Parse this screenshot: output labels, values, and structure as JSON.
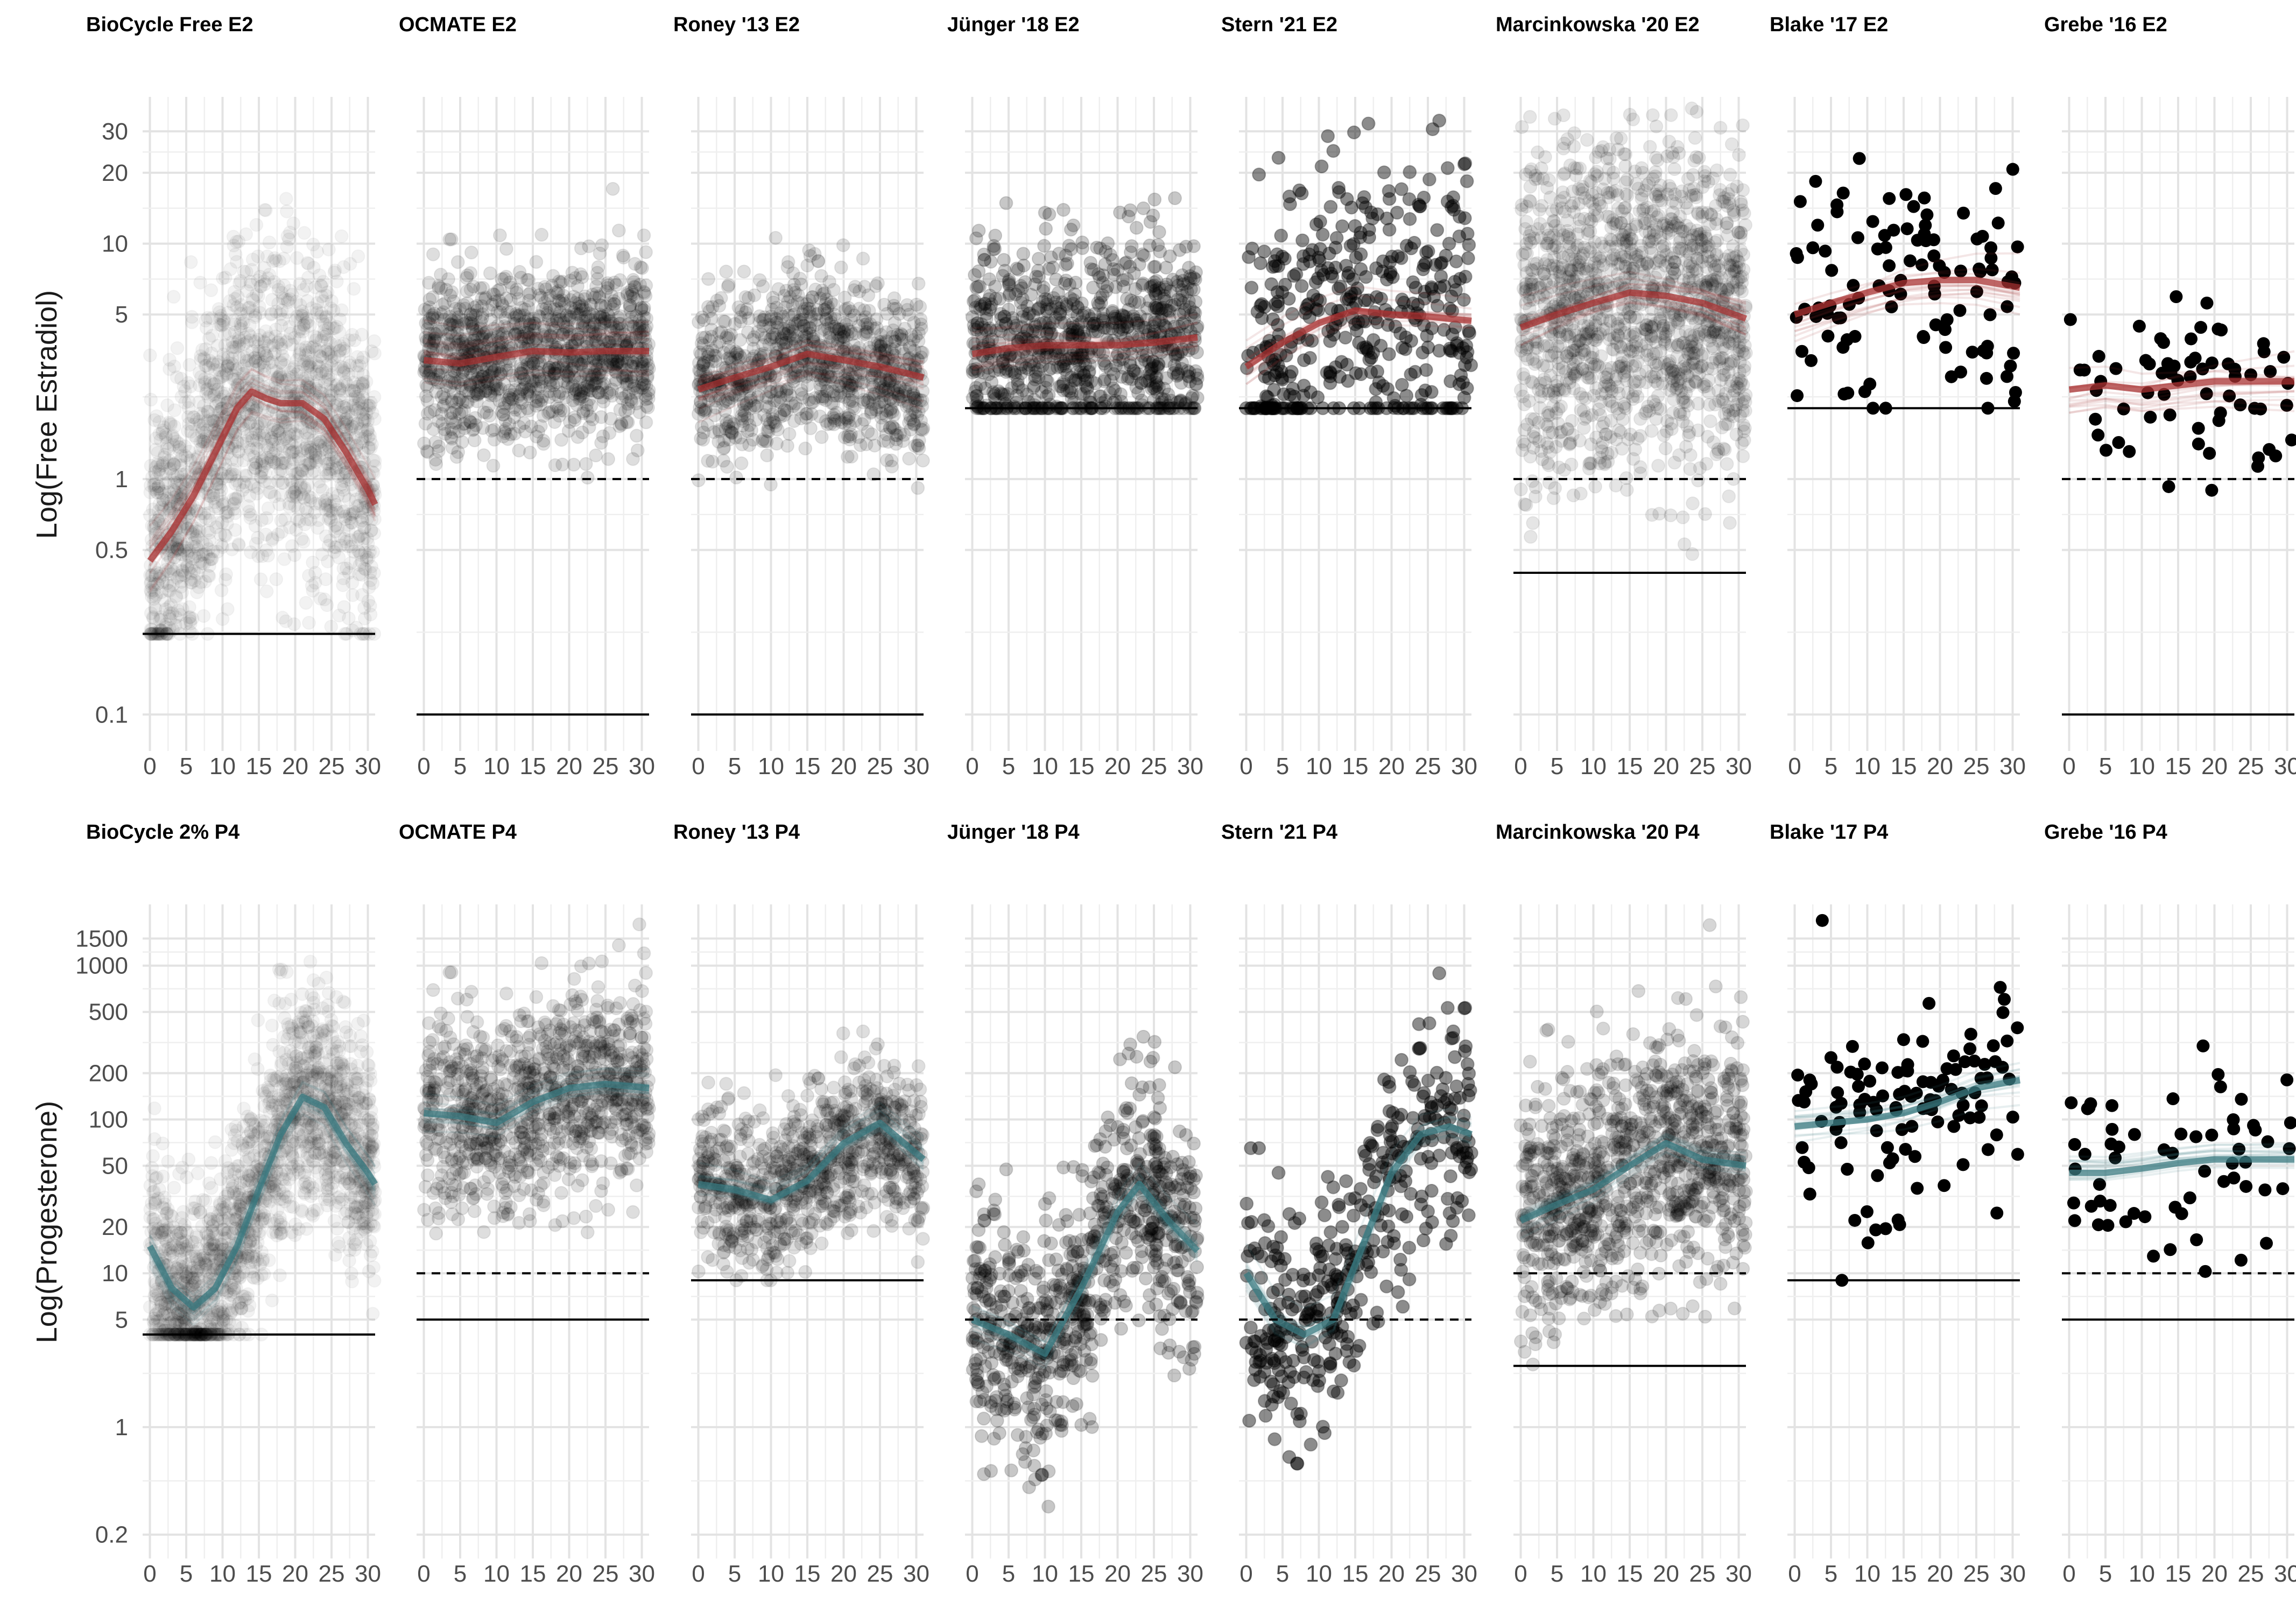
{
  "chart_data": {
    "type": "scatter",
    "x_ticks": [
      0,
      5,
      10,
      15,
      20,
      25,
      30
    ],
    "xlim": [
      -1,
      31
    ],
    "rows": [
      {
        "hormone": "E2",
        "ylabel": "Log(Free Estradiol)",
        "log_y": true,
        "ylim": [
          0.07,
          42
        ],
        "y_ticks": [
          {
            "value": 0.1,
            "label": "0.1"
          },
          {
            "value": 0.5,
            "label": "0.5"
          },
          {
            "value": 1,
            "label": "1"
          },
          {
            "value": 5,
            "label": "5"
          },
          {
            "value": 10,
            "label": "10"
          },
          {
            "value": 20,
            "label": "20"
          },
          {
            "value": 30,
            "label": "30"
          }
        ],
        "curve_color": "#a83232",
        "panels": [
          {
            "title": "BioCycle Free E2",
            "point_opacity": 0.05,
            "n_points": 1900,
            "curve": [
              [
                0,
                0.45
              ],
              [
                3,
                0.6
              ],
              [
                6,
                0.85
              ],
              [
                9,
                1.3
              ],
              [
                12,
                2.0
              ],
              [
                14,
                2.35
              ],
              [
                16,
                2.2
              ],
              [
                18,
                2.1
              ],
              [
                21,
                2.1
              ],
              [
                24,
                1.8
              ],
              [
                27,
                1.3
              ],
              [
                30,
                0.9
              ],
              [
                31,
                0.78
              ]
            ],
            "cloud_logsd": 0.32,
            "solid_ref": 0.22,
            "dashed_ref": null
          },
          {
            "title": "OCMATE E2",
            "point_opacity": 0.13,
            "n_points": 1200,
            "curve": [
              [
                0,
                3.2
              ],
              [
                5,
                3.1
              ],
              [
                10,
                3.3
              ],
              [
                15,
                3.5
              ],
              [
                20,
                3.45
              ],
              [
                25,
                3.5
              ],
              [
                31,
                3.5
              ]
            ],
            "cloud_logsd": 0.18,
            "solid_ref": 0.1,
            "dashed_ref": 1
          },
          {
            "title": "Roney '13 E2",
            "point_opacity": 0.13,
            "n_points": 1000,
            "curve": [
              [
                0,
                2.4
              ],
              [
                5,
                2.7
              ],
              [
                10,
                3.0
              ],
              [
                15,
                3.4
              ],
              [
                20,
                3.2
              ],
              [
                25,
                3.0
              ],
              [
                31,
                2.7
              ]
            ],
            "cloud_logsd": 0.17,
            "solid_ref": 0.1,
            "dashed_ref": 1
          },
          {
            "title": "Jünger '18 E2",
            "point_opacity": 0.22,
            "n_points": 900,
            "curve": [
              [
                0,
                3.4
              ],
              [
                5,
                3.6
              ],
              [
                10,
                3.7
              ],
              [
                15,
                3.7
              ],
              [
                20,
                3.7
              ],
              [
                25,
                3.8
              ],
              [
                31,
                4.0
              ]
            ],
            "cloud_logsd": 0.22,
            "solid_ref": 2,
            "dashed_ref": null
          },
          {
            "title": "Stern '21 E2",
            "point_opacity": 0.45,
            "n_points": 420,
            "curve": [
              [
                0,
                3.0
              ],
              [
                5,
                3.8
              ],
              [
                10,
                4.6
              ],
              [
                15,
                5.2
              ],
              [
                20,
                5.0
              ],
              [
                25,
                4.9
              ],
              [
                31,
                4.7
              ]
            ],
            "cloud_logsd": 0.33,
            "solid_ref": 2,
            "dashed_ref": null
          },
          {
            "title": "Marcinkowska '20 E2",
            "point_opacity": 0.1,
            "n_points": 1500,
            "curve": [
              [
                0,
                4.4
              ],
              [
                5,
                5.0
              ],
              [
                10,
                5.6
              ],
              [
                15,
                6.2
              ],
              [
                20,
                6.0
              ],
              [
                25,
                5.6
              ],
              [
                31,
                4.8
              ]
            ],
            "cloud_logsd": 0.35,
            "solid_ref": 0.4,
            "dashed_ref": 1
          },
          {
            "title": "Blake '17 E2",
            "point_opacity": 1,
            "n_points": 105,
            "curve": [
              [
                0,
                5.0
              ],
              [
                5,
                5.6
              ],
              [
                10,
                6.2
              ],
              [
                15,
                6.8
              ],
              [
                20,
                7.0
              ],
              [
                25,
                7.0
              ],
              [
                31,
                6.5
              ]
            ],
            "cloud_logsd": 0.28,
            "solid_ref": 2,
            "dashed_ref": null
          },
          {
            "title": "Grebe '16 E2",
            "point_opacity": 1,
            "n_points": 65,
            "curve": [
              [
                0,
                2.4
              ],
              [
                5,
                2.5
              ],
              [
                10,
                2.4
              ],
              [
                15,
                2.5
              ],
              [
                20,
                2.6
              ],
              [
                25,
                2.6
              ],
              [
                31,
                2.6
              ]
            ],
            "cloud_logsd": 0.18,
            "solid_ref": 0.1,
            "dashed_ref": 1
          }
        ]
      },
      {
        "hormone": "P4",
        "ylabel": "Log(Progesterone)",
        "log_y": true,
        "ylim": [
          0.14,
          2500
        ],
        "y_ticks": [
          {
            "value": 0.2,
            "label": "0.2"
          },
          {
            "value": 1,
            "label": "1"
          },
          {
            "value": 5,
            "label": "5"
          },
          {
            "value": 10,
            "label": "10"
          },
          {
            "value": 20,
            "label": "20"
          },
          {
            "value": 50,
            "label": "50"
          },
          {
            "value": 100,
            "label": "100"
          },
          {
            "value": 200,
            "label": "200"
          },
          {
            "value": 500,
            "label": "500"
          },
          {
            "value": 1000,
            "label": "1000"
          },
          {
            "value": 1500,
            "label": "1500"
          }
        ],
        "curve_color": "#3a7a80",
        "panels": [
          {
            "title": "BioCycle 2% P4",
            "point_opacity": 0.05,
            "n_points": 1900,
            "curve": [
              [
                0,
                15
              ],
              [
                3,
                8
              ],
              [
                6,
                6
              ],
              [
                9,
                8
              ],
              [
                12,
                15
              ],
              [
                15,
                35
              ],
              [
                18,
                80
              ],
              [
                21,
                140
              ],
              [
                24,
                120
              ],
              [
                27,
                70
              ],
              [
                30,
                45
              ],
              [
                31,
                38
              ]
            ],
            "cloud_logsd": 0.35,
            "solid_ref": 4,
            "dashed_ref": null
          },
          {
            "title": "OCMATE P4",
            "point_opacity": 0.13,
            "n_points": 1000,
            "curve": [
              [
                0,
                110
              ],
              [
                5,
                105
              ],
              [
                10,
                95
              ],
              [
                15,
                130
              ],
              [
                20,
                160
              ],
              [
                25,
                170
              ],
              [
                31,
                160
              ]
            ],
            "cloud_logsd": 0.32,
            "solid_ref": 5,
            "dashed_ref": 10
          },
          {
            "title": "Roney '13 P4",
            "point_opacity": 0.13,
            "n_points": 900,
            "curve": [
              [
                0,
                38
              ],
              [
                5,
                35
              ],
              [
                10,
                30
              ],
              [
                15,
                40
              ],
              [
                20,
                70
              ],
              [
                25,
                95
              ],
              [
                31,
                55
              ]
            ],
            "cloud_logsd": 0.25,
            "solid_ref": 9,
            "dashed_ref": null
          },
          {
            "title": "Jünger '18 P4",
            "point_opacity": 0.22,
            "n_points": 800,
            "curve": [
              [
                0,
                5
              ],
              [
                5,
                4
              ],
              [
                10,
                3
              ],
              [
                15,
                8
              ],
              [
                20,
                25
              ],
              [
                23,
                38
              ],
              [
                27,
                22
              ],
              [
                31,
                14
              ]
            ],
            "cloud_logsd": 0.38,
            "solid_ref": null,
            "dashed_ref": 5
          },
          {
            "title": "Stern '21 P4",
            "point_opacity": 0.45,
            "n_points": 400,
            "curve": [
              [
                0,
                10
              ],
              [
                4,
                5
              ],
              [
                8,
                4
              ],
              [
                12,
                5
              ],
              [
                16,
                15
              ],
              [
                20,
                45
              ],
              [
                24,
                80
              ],
              [
                28,
                90
              ],
              [
                31,
                80
              ]
            ],
            "cloud_logsd": 0.4,
            "solid_ref": null,
            "dashed_ref": 5
          },
          {
            "title": "Marcinkowska '20 P4",
            "point_opacity": 0.16,
            "n_points": 1000,
            "curve": [
              [
                0,
                22
              ],
              [
                5,
                28
              ],
              [
                10,
                35
              ],
              [
                15,
                50
              ],
              [
                20,
                70
              ],
              [
                25,
                55
              ],
              [
                31,
                50
              ]
            ],
            "cloud_logsd": 0.4,
            "solid_ref": 2.5,
            "dashed_ref": 10
          },
          {
            "title": "Blake '17 P4",
            "point_opacity": 1,
            "n_points": 110,
            "curve": [
              [
                0,
                90
              ],
              [
                5,
                95
              ],
              [
                10,
                100
              ],
              [
                15,
                110
              ],
              [
                20,
                130
              ],
              [
                25,
                160
              ],
              [
                31,
                180
              ]
            ],
            "cloud_logsd": 0.4,
            "solid_ref": 9,
            "dashed_ref": null
          },
          {
            "title": "Grebe '16 P4",
            "point_opacity": 1,
            "n_points": 60,
            "curve": [
              [
                0,
                45
              ],
              [
                5,
                45
              ],
              [
                10,
                48
              ],
              [
                15,
                52
              ],
              [
                20,
                55
              ],
              [
                25,
                55
              ],
              [
                31,
                55
              ]
            ],
            "cloud_logsd": 0.3,
            "solid_ref": 5,
            "dashed_ref": 10
          }
        ]
      }
    ]
  }
}
